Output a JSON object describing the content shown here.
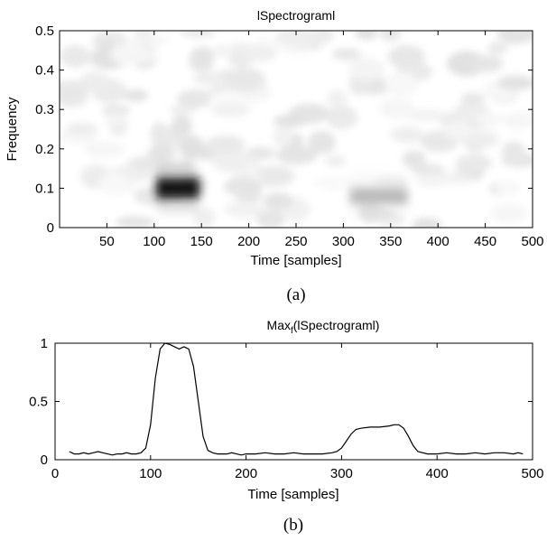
{
  "chart_data": [
    {
      "type": "heatmap",
      "title": "lSpectrograml",
      "xlabel": "Time [samples]",
      "ylabel": "Frequency",
      "xlim": [
        0,
        500
      ],
      "ylim": [
        0,
        0.5
      ],
      "xticks": [
        50,
        100,
        150,
        200,
        250,
        300,
        350,
        400,
        450,
        500
      ],
      "yticks": [
        0,
        0.1,
        0.2,
        0.3,
        0.4,
        0.5
      ],
      "grid": false,
      "caption": "(a)",
      "colormap": "gray (white = low, black = high)",
      "regions": [
        {
          "time": [
            100,
            150
          ],
          "frequency": [
            0.07,
            0.13
          ],
          "intensity": 1.0
        },
        {
          "time": [
            305,
            370
          ],
          "frequency": [
            0.055,
            0.105
          ],
          "intensity": 0.3
        }
      ]
    },
    {
      "type": "line",
      "title": "Max",
      "title_sub": "f",
      "title_rest": "(lSpectrograml)",
      "xlabel": "Time [samples]",
      "ylabel": "",
      "xlim": [
        0,
        500
      ],
      "ylim": [
        0,
        1
      ],
      "xticks": [
        0,
        100,
        200,
        300,
        400,
        500
      ],
      "yticks": [
        0,
        0.5,
        1
      ],
      "grid": false,
      "caption": "(b)",
      "series": [
        {
          "x": [
            15,
            20,
            25,
            30,
            35,
            40,
            45,
            50,
            55,
            60,
            65,
            70,
            75,
            80,
            85,
            90,
            95,
            100,
            105,
            110,
            115,
            120,
            125,
            130,
            135,
            140,
            145,
            150,
            155,
            160,
            165,
            170,
            175,
            180,
            185,
            190,
            195,
            200,
            210,
            220,
            230,
            240,
            250,
            260,
            270,
            280,
            290,
            295,
            300,
            305,
            310,
            315,
            320,
            330,
            340,
            350,
            355,
            360,
            365,
            370,
            375,
            380,
            390,
            400,
            410,
            420,
            430,
            440,
            450,
            460,
            470,
            480,
            485,
            490
          ],
          "y": [
            0.07,
            0.05,
            0.05,
            0.06,
            0.05,
            0.06,
            0.07,
            0.06,
            0.05,
            0.04,
            0.05,
            0.05,
            0.06,
            0.05,
            0.05,
            0.06,
            0.1,
            0.3,
            0.7,
            0.95,
            1.0,
            0.99,
            0.97,
            0.95,
            0.97,
            0.95,
            0.8,
            0.5,
            0.2,
            0.08,
            0.06,
            0.05,
            0.05,
            0.05,
            0.06,
            0.05,
            0.04,
            0.05,
            0.05,
            0.06,
            0.05,
            0.05,
            0.06,
            0.05,
            0.05,
            0.05,
            0.06,
            0.07,
            0.1,
            0.16,
            0.22,
            0.26,
            0.27,
            0.28,
            0.28,
            0.29,
            0.3,
            0.3,
            0.27,
            0.2,
            0.12,
            0.07,
            0.05,
            0.05,
            0.06,
            0.05,
            0.05,
            0.06,
            0.05,
            0.06,
            0.06,
            0.05,
            0.06,
            0.05
          ]
        }
      ]
    }
  ]
}
